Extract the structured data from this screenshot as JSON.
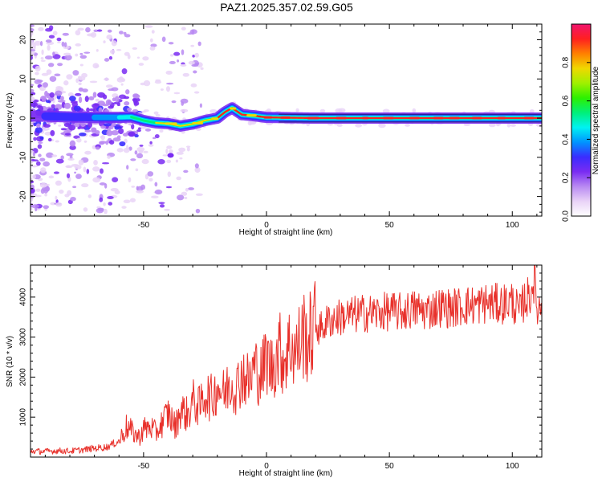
{
  "figure_title": "PAZ1.2025.357.02.59.G05",
  "chart_data": [
    {
      "type": "heatmap",
      "title": "PAZ1.2025.357.02.59.G05",
      "xlabel": "Height of straight line (km)",
      "ylabel": "Frequency (Hz)",
      "xlim": [
        -96,
        112
      ],
      "ylim": [
        -25,
        24
      ],
      "xticks": [
        -50,
        0,
        50,
        100
      ],
      "yticks": [
        -20,
        -10,
        0,
        10,
        20
      ],
      "xtick_labels": [
        "-50",
        "0",
        "50",
        "100"
      ],
      "ytick_labels": [
        "-20",
        "-10",
        "0",
        "10",
        "20"
      ],
      "colorbar": {
        "label": "Normalized spectral amplitude",
        "range": [
          0,
          1
        ],
        "ticks": [
          0.0,
          0.2,
          0.4,
          0.6,
          0.8
        ],
        "tick_labels": [
          "0.0",
          "0.2",
          "0.4",
          "0.6",
          "0.8"
        ],
        "colormap": [
          "#ffffff",
          "#e9d3f7",
          "#b98af2",
          "#7a2cf2",
          "#3a2cff",
          "#0094ff",
          "#00f2f2",
          "#00f07a",
          "#2cf000",
          "#a0f000",
          "#f0d800",
          "#ff8000",
          "#ff2020",
          "#f0146e"
        ]
      },
      "ridge": {
        "description": "Main Doppler ridge (frequency in Hz vs height in km)",
        "x": [
          -90,
          -80,
          -70,
          -60,
          -55,
          -50,
          -45,
          -40,
          -35,
          -30,
          -25,
          -20,
          -17,
          -14,
          -10,
          -5,
          0,
          10,
          20,
          40,
          60,
          80,
          100,
          112
        ],
        "y": [
          0.5,
          0.3,
          0.2,
          0.2,
          0.3,
          -0.6,
          -1.2,
          -1.4,
          -2.0,
          -1.5,
          -0.6,
          0.0,
          1.5,
          2.6,
          0.9,
          0.6,
          0.2,
          0.1,
          0.0,
          0.0,
          0.0,
          0.0,
          0.0,
          0.0
        ]
      }
    },
    {
      "type": "line",
      "xlabel": "Height of straight line (km)",
      "ylabel": "SNR (10 * v/v)",
      "xlim": [
        -96,
        112
      ],
      "ylim": [
        0,
        4800
      ],
      "xticks": [
        -50,
        0,
        50,
        100
      ],
      "yticks": [
        1000,
        2000,
        3000,
        4000
      ],
      "xtick_labels": [
        "-50",
        "0",
        "50",
        "100"
      ],
      "ytick_labels": [
        "1000",
        "2000",
        "3000",
        "4000"
      ],
      "series": [
        {
          "name": "SNR",
          "color": "#e8302a",
          "x": [
            -96,
            -90,
            -85,
            -80,
            -75,
            -70,
            -65,
            -60,
            -57,
            -55,
            -52,
            -50,
            -47,
            -45,
            -42,
            -40,
            -37,
            -35,
            -32,
            -30,
            -27,
            -25,
            -22,
            -20,
            -17,
            -15,
            -12,
            -10,
            -7,
            -5,
            -2,
            0,
            2,
            5,
            7,
            10,
            12,
            15,
            17,
            20,
            22,
            25,
            27,
            30,
            35,
            40,
            45,
            50,
            55,
            60,
            65,
            70,
            75,
            80,
            85,
            90,
            95,
            100,
            103,
            105,
            107,
            109,
            110,
            112
          ],
          "values": [
            150,
            140,
            160,
            150,
            180,
            220,
            250,
            400,
            750,
            650,
            500,
            700,
            750,
            600,
            900,
            1100,
            750,
            1200,
            1050,
            1400,
            1250,
            1600,
            1450,
            1800,
            1550,
            1900,
            1750,
            2100,
            1850,
            2250,
            2050,
            2500,
            2200,
            2700,
            2450,
            2850,
            2600,
            3100,
            2900,
            3300,
            3200,
            3400,
            3450,
            3500,
            3550,
            3600,
            3600,
            3650,
            3620,
            3700,
            3650,
            3750,
            3720,
            3780,
            3800,
            3850,
            3820,
            3900,
            3600,
            3950,
            4000,
            4500,
            3700,
            3800
          ]
        }
      ]
    }
  ]
}
